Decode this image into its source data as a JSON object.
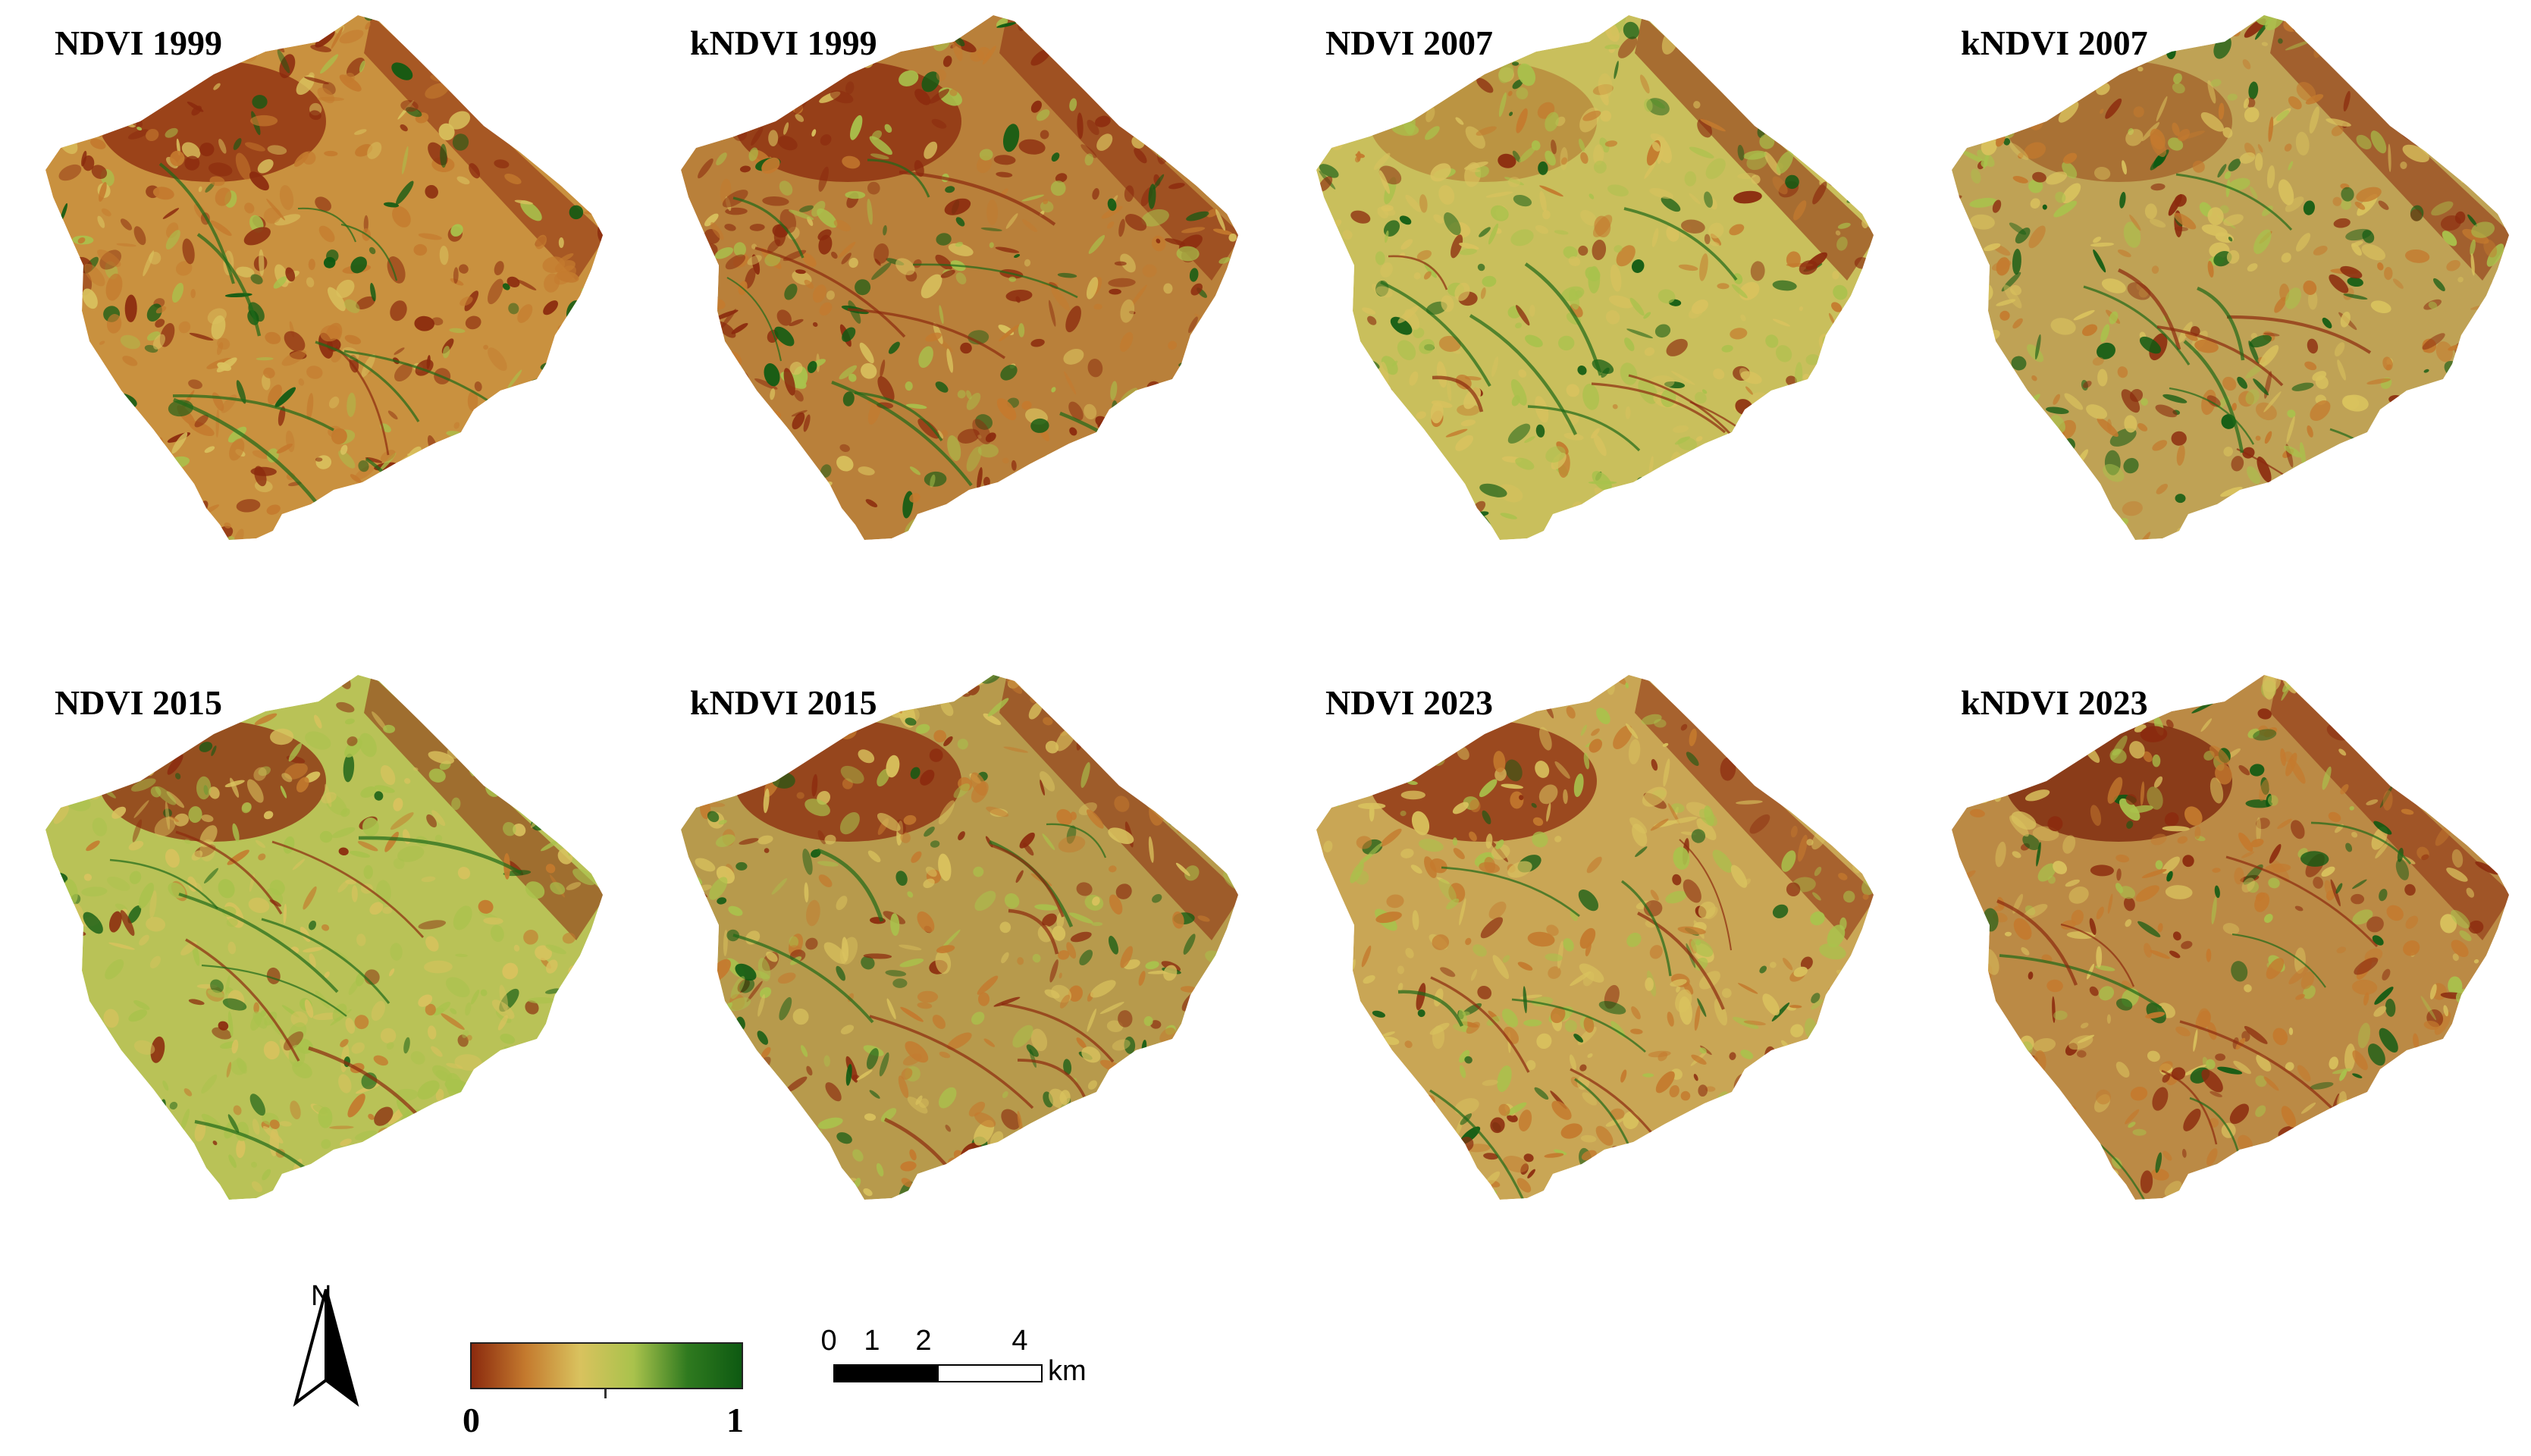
{
  "panels": [
    {
      "title": "NDVI 1999",
      "index": "NDVI",
      "year": 1999
    },
    {
      "title": "kNDVI 1999",
      "index": "kNDVI",
      "year": 1999
    },
    {
      "title": "NDVI 2007",
      "index": "NDVI",
      "year": 2007
    },
    {
      "title": "kNDVI 2007",
      "index": "kNDVI",
      "year": 2007
    },
    {
      "title": "NDVI 2015",
      "index": "NDVI",
      "year": 2015
    },
    {
      "title": "kNDVI 2015",
      "index": "kNDVI",
      "year": 2015
    },
    {
      "title": "NDVI 2023",
      "index": "NDVI",
      "year": 2023
    },
    {
      "title": "kNDVI 2023",
      "index": "kNDVI",
      "year": 2023
    }
  ],
  "legend": {
    "north_label": "N",
    "colorbar": {
      "min_label": "0",
      "max_label": "1",
      "min": 0,
      "max": 1,
      "colors": [
        "#8b2a0e",
        "#c47a2e",
        "#d9c25e",
        "#a9c24c",
        "#2f7a1f",
        "#0e5a12"
      ]
    },
    "scale": {
      "ticks": [
        "0",
        "1",
        "2",
        "4"
      ],
      "tick_values_km": [
        0,
        1,
        2,
        4
      ],
      "unit": "km"
    }
  },
  "palette": {
    "brown": "#8b2a0e",
    "orange": "#c47a2e",
    "yellow": "#d9c25e",
    "light_green": "#a9c24c",
    "dark_green": "#0e5a12"
  }
}
